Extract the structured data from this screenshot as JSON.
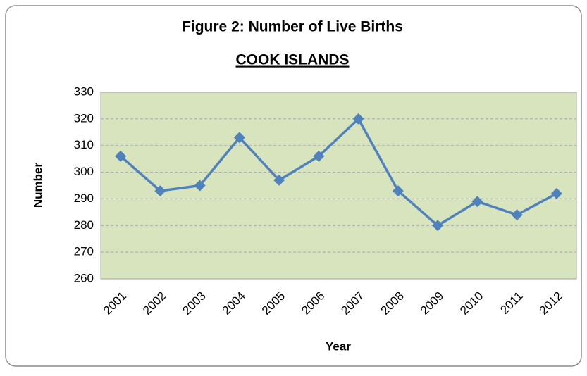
{
  "chart_data": {
    "type": "line",
    "title": "Figure 2: Number of Live Births",
    "subtitle": "COOK ISLANDS",
    "x_label": "Year",
    "y_label": "Number",
    "categories": [
      "2001",
      "2002",
      "2003",
      "2004",
      "2005",
      "2006",
      "2007",
      "2008",
      "2009",
      "2010",
      "2011",
      "2012"
    ],
    "series": [
      {
        "name": "Live Births",
        "color": "#4f81bd",
        "values": [
          306,
          293,
          295,
          313,
          297,
          306,
          320,
          293,
          280,
          289,
          284,
          292
        ]
      }
    ],
    "ylim": [
      260,
      330
    ],
    "yticks": [
      260,
      270,
      280,
      290,
      300,
      310,
      320,
      330
    ],
    "grid": true
  }
}
